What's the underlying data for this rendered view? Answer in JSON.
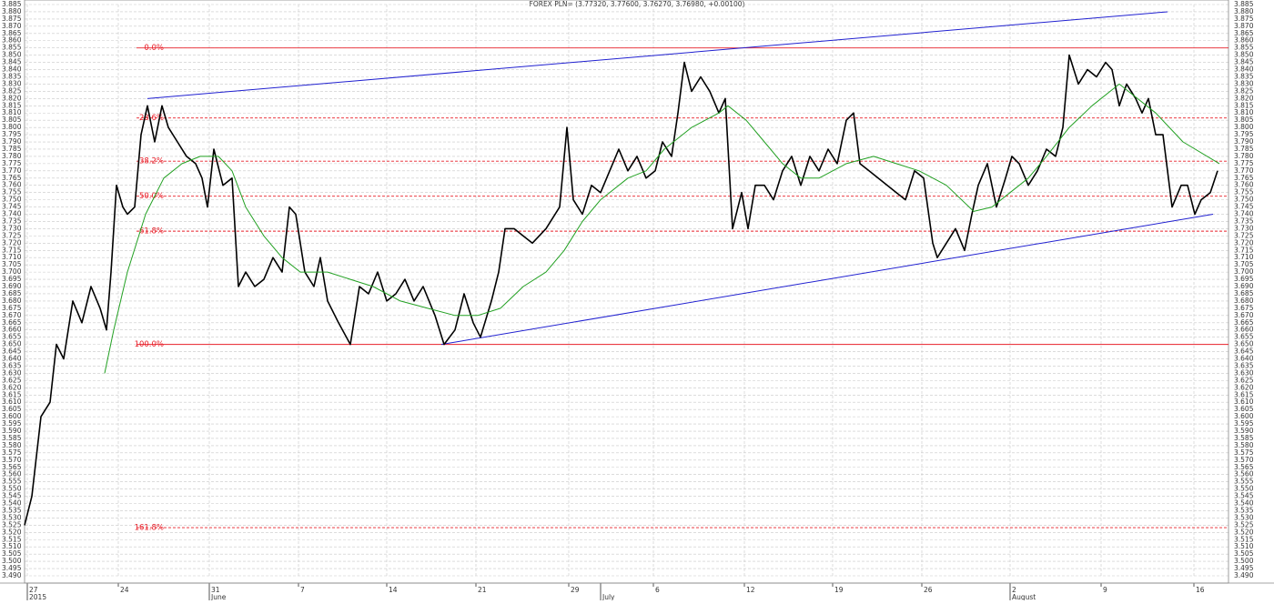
{
  "chart_data": {
    "type": "line",
    "title": "FOREX PLN= (3.77320, 3.77600, 3.76270, 3.76980, +0.00100)",
    "xlim": [
      2.7,
      135.0
    ],
    "ylim": [
      3.49,
      3.885
    ],
    "grid": true,
    "xticks": [
      {
        "value": 3.0,
        "label": "27"
      },
      {
        "value": 13.0,
        "label": "24"
      },
      {
        "value": 23.0,
        "label": "31"
      },
      {
        "value": 32.8,
        "label": "7"
      },
      {
        "value": 42.5,
        "label": "14"
      },
      {
        "value": 52.3,
        "label": "21"
      },
      {
        "value": 62.5,
        "label": "29"
      },
      {
        "value": 71.8,
        "label": "6"
      },
      {
        "value": 81.8,
        "label": "12"
      },
      {
        "value": 91.5,
        "label": "19"
      },
      {
        "value": 101.3,
        "label": "26"
      },
      {
        "value": 111.0,
        "label": "2"
      },
      {
        "value": 121.0,
        "label": "9"
      },
      {
        "value": 131.2,
        "label": "16"
      }
    ],
    "period_labels": [
      {
        "value": 3.0,
        "label": "2015"
      },
      {
        "value": 23.0,
        "label": "June"
      },
      {
        "value": 66.0,
        "label": "July"
      },
      {
        "value": 111.0,
        "label": "August"
      }
    ],
    "yticks": [
      {
        "value": 3.49,
        "label": "3.490"
      },
      3.495,
      {
        "value": 3.5,
        "label": "3.500"
      },
      3.505,
      {
        "value": 3.51,
        "label": "3.510"
      },
      3.515,
      {
        "value": 3.52,
        "label": "3.520"
      },
      3.525,
      {
        "value": 3.53,
        "label": "3.530"
      },
      3.535,
      {
        "value": 3.54,
        "label": "3.540"
      },
      3.545,
      {
        "value": 3.55,
        "label": "3.550"
      },
      3.555,
      {
        "value": 3.56,
        "label": "3.560"
      },
      3.565,
      {
        "value": 3.57,
        "label": "3.570"
      },
      3.575,
      {
        "value": 3.58,
        "label": "3.580"
      },
      3.585,
      {
        "value": 3.59,
        "label": "3.590"
      },
      3.595,
      {
        "value": 3.6,
        "label": "3.600"
      },
      3.605,
      {
        "value": 3.61,
        "label": "3.610"
      },
      3.615,
      {
        "value": 3.62,
        "label": "3.620"
      },
      3.625,
      {
        "value": 3.63,
        "label": "3.630"
      },
      3.635,
      {
        "value": 3.64,
        "label": "3.640"
      },
      3.645,
      {
        "value": 3.65,
        "label": "3.650"
      },
      3.655,
      {
        "value": 3.66,
        "label": "3.660"
      },
      3.665,
      {
        "value": 3.67,
        "label": "3.670"
      },
      3.675,
      {
        "value": 3.68,
        "label": "3.680"
      },
      3.685,
      {
        "value": 3.69,
        "label": "3.690"
      },
      3.695,
      {
        "value": 3.7,
        "label": "3.700"
      },
      3.705,
      {
        "value": 3.71,
        "label": "3.710"
      },
      3.715,
      {
        "value": 3.72,
        "label": "3.720"
      },
      3.725,
      {
        "value": 3.73,
        "label": "3.730"
      },
      3.735,
      {
        "value": 3.74,
        "label": "3.740"
      },
      3.745,
      {
        "value": 3.75,
        "label": "3.750"
      },
      3.755,
      {
        "value": 3.76,
        "label": "3.760"
      },
      3.765,
      {
        "value": 3.77,
        "label": "3.770"
      },
      3.775,
      {
        "value": 3.78,
        "label": "3.780"
      },
      3.785,
      {
        "value": 3.79,
        "label": "3.790"
      },
      3.795,
      {
        "value": 3.8,
        "label": "3.800"
      },
      3.805,
      {
        "value": 3.81,
        "label": "3.810"
      },
      3.815,
      {
        "value": 3.82,
        "label": "3.820"
      },
      3.825,
      {
        "value": 3.83,
        "label": "3.830"
      },
      3.835,
      {
        "value": 3.84,
        "label": "3.840"
      },
      3.845,
      {
        "value": 3.85,
        "label": "3.850"
      },
      3.855,
      {
        "value": 3.86,
        "label": "3.860"
      },
      3.865,
      {
        "value": 3.87,
        "label": "3.870"
      },
      3.875,
      {
        "value": 3.88,
        "label": "3.880"
      },
      3.885
    ],
    "series": [
      {
        "color": "#000000",
        "x": [
          2.7,
          3.5,
          4.5,
          5.5,
          6.2,
          7.0,
          8.0,
          9.0,
          10.0,
          11.0,
          11.7,
          12.2,
          12.8,
          13.5,
          14.0,
          14.8,
          15.5,
          16.2,
          17.0,
          17.8,
          18.5,
          19.5,
          20.5,
          21.5,
          22.2,
          22.8,
          23.5,
          24.5,
          25.5,
          26.2,
          27.0,
          28.0,
          29.0,
          30.0,
          31.0,
          31.8,
          32.5,
          33.5,
          34.5,
          35.2,
          36.0,
          37.2,
          38.5,
          39.5,
          40.5,
          41.5,
          42.5,
          43.5,
          44.5,
          45.5,
          46.5,
          47.8,
          48.8,
          50.0,
          51.0,
          52.0,
          52.8,
          54.0,
          54.8,
          55.5,
          56.5,
          57.5,
          58.5,
          60.0,
          61.5,
          62.3,
          63.0,
          64.0,
          65.0,
          66.0,
          67.0,
          68.0,
          69.0,
          70.0,
          71.0,
          72.0,
          72.8,
          73.8,
          74.5,
          75.2,
          76.0,
          77.0,
          78.0,
          79.0,
          79.7,
          80.5,
          81.5,
          82.2,
          83.0,
          84.0,
          85.0,
          86.0,
          87.0,
          88.0,
          89.0,
          90.0,
          91.0,
          92.0,
          93.0,
          93.8,
          94.5,
          95.5,
          96.5,
          97.5,
          98.5,
          99.5,
          100.5,
          101.5,
          102.5,
          103.0,
          104.0,
          105.0,
          106.0,
          106.8,
          107.5,
          108.5,
          109.5,
          110.5,
          111.2,
          112.0,
          113.0,
          114.0,
          115.0,
          116.0,
          116.8,
          117.5,
          118.5,
          119.5,
          120.5,
          121.5,
          122.2,
          123.0,
          123.8,
          124.8,
          125.5,
          126.2,
          127.0,
          127.8,
          128.8,
          129.8,
          130.5,
          131.3,
          132.0,
          133.0,
          133.8
        ],
        "values": [
          3.525,
          3.545,
          3.6,
          3.61,
          3.65,
          3.64,
          3.68,
          3.665,
          3.69,
          3.675,
          3.66,
          3.7,
          3.76,
          3.745,
          3.74,
          3.745,
          3.795,
          3.815,
          3.79,
          3.815,
          3.8,
          3.79,
          3.78,
          3.775,
          3.765,
          3.745,
          3.785,
          3.76,
          3.765,
          3.69,
          3.7,
          3.69,
          3.695,
          3.71,
          3.7,
          3.745,
          3.74,
          3.7,
          3.69,
          3.71,
          3.68,
          3.665,
          3.65,
          3.69,
          3.685,
          3.7,
          3.68,
          3.685,
          3.695,
          3.68,
          3.69,
          3.67,
          3.65,
          3.66,
          3.685,
          3.665,
          3.655,
          3.68,
          3.7,
          3.73,
          3.73,
          3.725,
          3.72,
          3.73,
          3.745,
          3.8,
          3.75,
          3.74,
          3.76,
          3.755,
          3.77,
          3.785,
          3.77,
          3.78,
          3.765,
          3.77,
          3.79,
          3.78,
          3.81,
          3.845,
          3.825,
          3.835,
          3.825,
          3.81,
          3.82,
          3.73,
          3.755,
          3.73,
          3.76,
          3.76,
          3.75,
          3.77,
          3.78,
          3.76,
          3.78,
          3.77,
          3.785,
          3.775,
          3.805,
          3.81,
          3.775,
          3.77,
          3.765,
          3.76,
          3.755,
          3.75,
          3.77,
          3.765,
          3.72,
          3.71,
          3.72,
          3.73,
          3.715,
          3.74,
          3.76,
          3.775,
          3.745,
          3.765,
          3.78,
          3.775,
          3.76,
          3.77,
          3.785,
          3.78,
          3.8,
          3.85,
          3.83,
          3.84,
          3.835,
          3.845,
          3.84,
          3.815,
          3.83,
          3.82,
          3.81,
          3.82,
          3.795,
          3.795,
          3.745,
          3.76,
          3.76,
          3.74,
          3.75,
          3.755,
          3.77
        ]
      },
      {
        "color": "#22a022",
        "x": [
          11.5,
          12.5,
          14.0,
          16.0,
          18.0,
          20.0,
          22.0,
          24.0,
          25.5,
          27.0,
          29.0,
          31.0,
          33.0,
          36.0,
          38.5,
          41.0,
          44.0,
          47.0,
          50.0,
          52.5,
          55.0,
          57.5,
          60.0,
          62.0,
          64.0,
          66.0,
          69.0,
          71.0,
          73.0,
          76.0,
          79.0,
          80.0,
          82.0,
          84.0,
          86.0,
          88.0,
          90.0,
          93.0,
          96.0,
          98.5,
          101.0,
          104.0,
          107.0,
          109.0,
          111.0,
          113.0,
          115.0,
          117.5,
          120.0,
          123.0,
          124.0,
          127.0,
          130.0,
          134.0
        ],
        "values": [
          3.63,
          3.66,
          3.7,
          3.74,
          3.765,
          3.775,
          3.78,
          3.78,
          3.77,
          3.745,
          3.725,
          3.71,
          3.7,
          3.7,
          3.695,
          3.69,
          3.68,
          3.675,
          3.67,
          3.67,
          3.675,
          3.69,
          3.7,
          3.715,
          3.735,
          3.75,
          3.765,
          3.77,
          3.785,
          3.8,
          3.81,
          3.815,
          3.805,
          3.79,
          3.775,
          3.765,
          3.765,
          3.775,
          3.78,
          3.775,
          3.77,
          3.76,
          3.742,
          3.745,
          3.755,
          3.765,
          3.78,
          3.8,
          3.815,
          3.83,
          3.825,
          3.81,
          3.79,
          3.775
        ]
      }
    ],
    "levels": [
      {
        "label": "0.0%",
        "value": 3.855,
        "dashed": false
      },
      {
        "label": "23.6%",
        "value": 3.8066,
        "dashed": true
      },
      {
        "label": "38.2%",
        "value": 3.7767,
        "dashed": true
      },
      {
        "label": "50.0%",
        "value": 3.7525,
        "dashed": true
      },
      {
        "label": "61.8%",
        "value": 3.7283,
        "dashed": true
      },
      {
        "label": "100.0%",
        "value": 3.65,
        "dashed": false
      },
      {
        "label": "161.8%",
        "value": 3.5233,
        "dashed": true
      }
    ],
    "level_color": "#e8202a",
    "trendline_color": "#2020d0",
    "trendlines": [
      {
        "x": [
          16.2,
          128.3
        ],
        "values": [
          3.82,
          3.88
        ]
      },
      {
        "x": [
          48.5,
          133.3
        ],
        "values": [
          3.65,
          3.74
        ]
      }
    ]
  }
}
